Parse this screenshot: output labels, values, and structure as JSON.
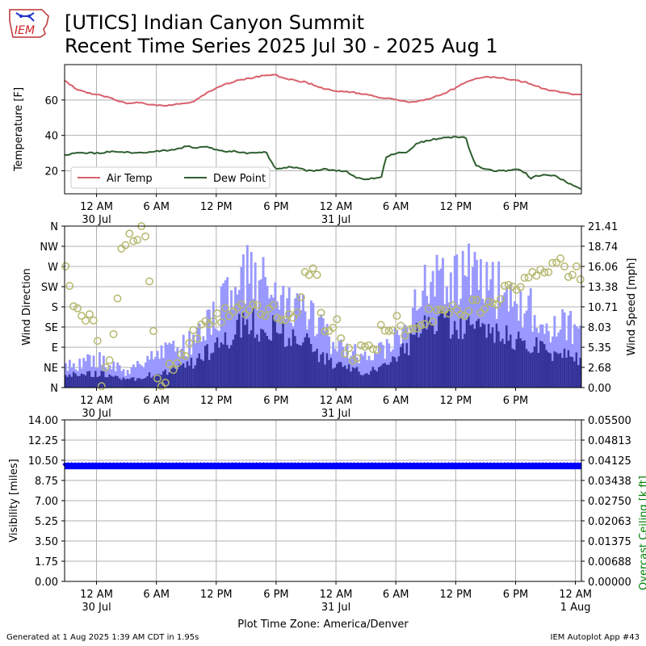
{
  "header": {
    "title_line1": "[UTICS] Indian Canyon Summit",
    "title_line2": "Recent Time Series 2025 Jul 30 - 2025 Aug 1",
    "logo_text": "IEM"
  },
  "footer": {
    "generated": "Generated at 1 Aug 2025 1:39 AM CDT in 1.95s",
    "app": "IEM Autoplot App #43"
  },
  "time_axis": {
    "start_hour": -3.2,
    "end_hour": 48.6,
    "ticks": [
      {
        "hour": 0,
        "label": "12 AM",
        "sub": "30 Jul"
      },
      {
        "hour": 6,
        "label": "6 AM",
        "sub": ""
      },
      {
        "hour": 12,
        "label": "12 PM",
        "sub": ""
      },
      {
        "hour": 18,
        "label": "6 PM",
        "sub": ""
      },
      {
        "hour": 24,
        "label": "12 AM",
        "sub": "31 Jul"
      },
      {
        "hour": 30,
        "label": "6 AM",
        "sub": ""
      },
      {
        "hour": 36,
        "label": "12 PM",
        "sub": ""
      },
      {
        "hour": 42,
        "label": "6 PM",
        "sub": ""
      }
    ],
    "extra_tick_bottom": {
      "hour": 48,
      "label": "12 AM",
      "sub": "1 Aug"
    },
    "xlabel": "Plot Time Zone: America/Denver"
  },
  "chart_data": [
    {
      "type": "line",
      "ylabel": "Temperature [F]",
      "ylim": [
        7,
        80
      ],
      "yticks": [
        20,
        40,
        60
      ],
      "grid": true,
      "legend": "bottom-left",
      "series": [
        {
          "name": "Air Temp",
          "color": "#d9606a",
          "points": [
            [
              -3.2,
              71
            ],
            [
              -2,
              66
            ],
            [
              -1,
              64
            ],
            [
              0,
              63
            ],
            [
              1,
              62
            ],
            [
              2,
              60
            ],
            [
              3,
              58
            ],
            [
              4,
              58.5
            ],
            [
              5,
              58
            ],
            [
              6,
              57
            ],
            [
              7,
              57
            ],
            [
              8,
              57.5
            ],
            [
              9,
              58
            ],
            [
              10,
              60
            ],
            [
              11,
              64
            ],
            [
              12,
              67
            ],
            [
              13,
              69
            ],
            [
              14,
              71
            ],
            [
              15,
              72
            ],
            [
              16,
              73
            ],
            [
              17,
              74
            ],
            [
              18,
              74
            ],
            [
              19,
              72
            ],
            [
              20,
              71
            ],
            [
              21,
              70
            ],
            [
              22,
              68
            ],
            [
              23,
              66
            ],
            [
              24,
              65
            ],
            [
              25,
              65
            ],
            [
              26,
              64
            ],
            [
              27,
              63
            ],
            [
              28,
              62
            ],
            [
              29,
              61
            ],
            [
              30,
              60
            ],
            [
              31,
              59
            ],
            [
              32,
              59
            ],
            [
              33,
              60
            ],
            [
              34,
              62
            ],
            [
              35,
              64
            ],
            [
              36,
              67
            ],
            [
              37,
              70
            ],
            [
              38,
              72
            ],
            [
              39,
              73
            ],
            [
              40,
              73
            ],
            [
              41,
              72
            ],
            [
              42,
              71
            ],
            [
              43,
              70
            ],
            [
              44,
              68
            ],
            [
              45,
              66
            ],
            [
              46,
              65
            ],
            [
              47,
              64
            ],
            [
              48,
              63
            ],
            [
              48.6,
              63
            ]
          ]
        },
        {
          "name": "Dew Point",
          "color": "#2e5e2e",
          "points": [
            [
              -3.2,
              29
            ],
            [
              -2,
              30
            ],
            [
              0,
              30
            ],
            [
              2,
              31
            ],
            [
              4,
              30
            ],
            [
              6,
              31
            ],
            [
              8,
              32
            ],
            [
              9,
              34
            ],
            [
              10,
              33
            ],
            [
              11,
              34
            ],
            [
              12,
              32
            ],
            [
              13,
              31
            ],
            [
              14,
              31
            ],
            [
              15,
              30
            ],
            [
              16,
              30
            ],
            [
              17,
              31
            ],
            [
              17.5,
              25
            ],
            [
              18,
              21
            ],
            [
              19,
              22
            ],
            [
              20,
              22
            ],
            [
              21,
              20
            ],
            [
              22,
              20
            ],
            [
              23,
              21
            ],
            [
              24,
              20
            ],
            [
              25,
              20
            ],
            [
              26,
              16
            ],
            [
              27,
              15
            ],
            [
              28,
              16
            ],
            [
              28.6,
              17
            ],
            [
              29,
              28
            ],
            [
              30,
              30
            ],
            [
              31,
              30
            ],
            [
              32,
              35
            ],
            [
              33,
              37
            ],
            [
              34,
              38
            ],
            [
              35,
              39
            ],
            [
              36,
              39
            ],
            [
              37,
              39
            ],
            [
              37.5,
              30
            ],
            [
              38,
              23
            ],
            [
              39,
              21
            ],
            [
              40,
              20
            ],
            [
              41,
              20
            ],
            [
              42,
              21
            ],
            [
              43,
              19
            ],
            [
              43.5,
              15
            ],
            [
              44,
              17
            ],
            [
              45,
              18
            ],
            [
              46,
              17
            ],
            [
              47,
              14
            ],
            [
              48,
              11
            ],
            [
              48.6,
              10
            ]
          ]
        }
      ]
    },
    {
      "type": "bar",
      "ylabel": "Wind Direction",
      "y2label": "Wind Speed [mph]",
      "dir_ticks": [
        "N",
        "NE",
        "E",
        "SE",
        "S",
        "SW",
        "W",
        "NW",
        "N"
      ],
      "speed_ticks": [
        0.0,
        2.68,
        5.35,
        8.03,
        10.71,
        13.38,
        16.06,
        18.74,
        21.41
      ],
      "speed_lim": [
        0,
        21.41
      ],
      "grid": true,
      "gust_color": "#9999ff",
      "speed_color": "#333399",
      "dir_color": "#b5b86e",
      "gust_anchors": [
        [
          -3.2,
          3
        ],
        [
          0,
          4
        ],
        [
          3,
          2
        ],
        [
          6,
          5
        ],
        [
          9,
          6
        ],
        [
          12,
          10
        ],
        [
          15,
          16
        ],
        [
          18,
          13
        ],
        [
          21,
          10
        ],
        [
          24,
          6
        ],
        [
          27,
          4
        ],
        [
          30,
          7
        ],
        [
          33,
          14
        ],
        [
          36,
          16
        ],
        [
          39,
          15
        ],
        [
          42,
          12
        ],
        [
          45,
          9
        ],
        [
          48.6,
          8
        ]
      ],
      "speed_anchors": [
        [
          -3.2,
          2
        ],
        [
          0,
          2
        ],
        [
          3,
          1
        ],
        [
          6,
          2
        ],
        [
          9,
          3
        ],
        [
          12,
          6
        ],
        [
          15,
          9
        ],
        [
          18,
          8
        ],
        [
          21,
          6
        ],
        [
          24,
          3
        ],
        [
          27,
          2
        ],
        [
          30,
          4
        ],
        [
          33,
          9
        ],
        [
          36,
          9
        ],
        [
          39,
          8
        ],
        [
          42,
          7
        ],
        [
          45,
          5
        ],
        [
          48.6,
          4
        ]
      ],
      "dir_anchors": [
        [
          -3.2,
          280
        ],
        [
          -2.5,
          190
        ],
        [
          -2,
          170
        ],
        [
          0,
          150
        ],
        [
          0.5,
          20
        ],
        [
          1.5,
          60
        ],
        [
          2.5,
          300
        ],
        [
          3,
          330
        ],
        [
          4,
          340
        ],
        [
          5,
          355
        ],
        [
          6,
          10
        ],
        [
          7,
          30
        ],
        [
          8,
          60
        ],
        [
          9,
          90
        ],
        [
          10,
          120
        ],
        [
          11,
          150
        ],
        [
          12,
          160
        ],
        [
          14,
          170
        ],
        [
          16,
          170
        ],
        [
          18,
          170
        ],
        [
          20,
          150
        ],
        [
          21,
          260
        ],
        [
          22,
          250
        ],
        [
          23,
          120
        ],
        [
          24,
          140
        ],
        [
          25,
          80
        ],
        [
          26,
          60
        ],
        [
          27,
          110
        ],
        [
          28,
          100
        ],
        [
          29,
          140
        ],
        [
          30,
          150
        ],
        [
          31,
          120
        ],
        [
          32,
          150
        ],
        [
          34,
          160
        ],
        [
          36,
          170
        ],
        [
          38,
          180
        ],
        [
          40,
          190
        ],
        [
          42,
          230
        ],
        [
          44,
          260
        ],
        [
          46,
          280
        ],
        [
          48.6,
          250
        ]
      ]
    },
    {
      "type": "scatter",
      "ylabel": "Visibility [miles]",
      "y2label": "Overcast Ceiling [k ft]",
      "ylim": [
        0,
        14
      ],
      "yticks": [
        "0.00",
        "1.75",
        "3.50",
        "5.25",
        "7.00",
        "8.75",
        "10.50",
        "12.25",
        "14.00"
      ],
      "y2ticks": [
        "0.00000",
        "0.00688",
        "0.01375",
        "0.02063",
        "0.02750",
        "0.03438",
        "0.04125",
        "0.04813",
        "0.05500"
      ],
      "visibility_value": 10,
      "grid": true,
      "color": "#0000ff",
      "y2label_color": "#008000"
    }
  ]
}
